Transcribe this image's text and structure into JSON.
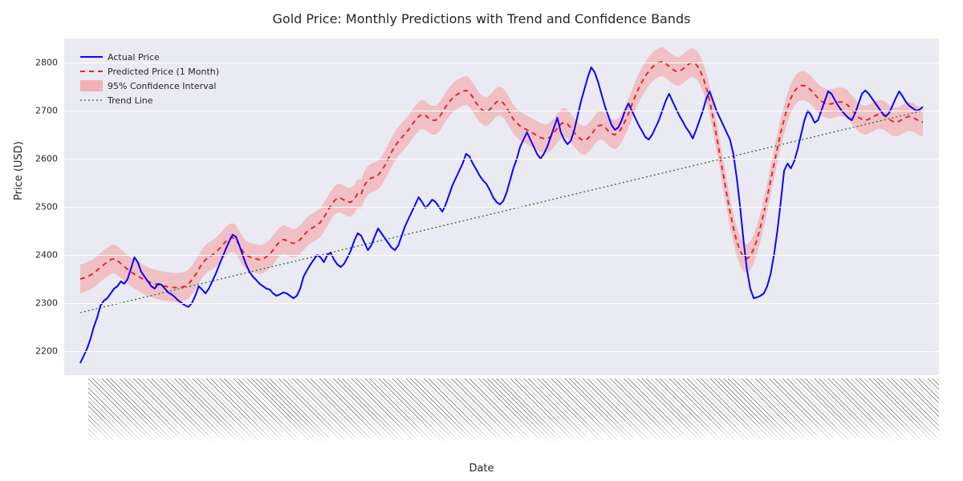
{
  "chart": {
    "type": "line",
    "title": "Gold Price: Monthly Predictions with Trend and Confidence Bands",
    "title_fontsize": 16,
    "title_color": "#262626",
    "xlabel": "Date",
    "ylabel": "Price (USD)",
    "label_fontsize": 13,
    "label_color": "#262626",
    "background_color": "#ffffff",
    "plot_background_color": "#eaeaf2",
    "grid_color": "#ffffff",
    "tick_label_color": "#262626",
    "tick_fontsize": 11,
    "xtick_rotation_deg": 45,
    "xtick_fontsize": 8,
    "xtick_overlap": true,
    "ylim": [
      2150,
      2850
    ],
    "yticks": [
      2200,
      2300,
      2400,
      2500,
      2600,
      2700,
      2800
    ],
    "x_count": 250,
    "legend": {
      "position": "upper-left",
      "fontsize": 11,
      "items": [
        {
          "label": "Actual Price",
          "kind": "line",
          "color": "#0b03ff",
          "linewidth": 2.0,
          "dash": "solid"
        },
        {
          "label": "Predicted Price (1 Month)",
          "kind": "line",
          "color": "#e3272c",
          "linewidth": 2.0,
          "dash": "6,5"
        },
        {
          "label": "95% Confidence Interval",
          "kind": "area",
          "color": "#f2b1b6"
        },
        {
          "label": "Trend Line",
          "kind": "line",
          "color": "#3a7a3a",
          "linewidth": 1.4,
          "dash": "2,3"
        }
      ]
    },
    "series": {
      "trend": {
        "y_start": 2280,
        "y_end": 2700,
        "color": "#3a7a3a",
        "linewidth": 1.4,
        "dash": "2,3"
      },
      "actual": {
        "color": "#0b03ff",
        "linewidth": 2.0,
        "dash": "solid",
        "y": [
          2175,
          2190,
          2205,
          2225,
          2250,
          2270,
          2295,
          2305,
          2310,
          2320,
          2330,
          2335,
          2345,
          2340,
          2350,
          2372,
          2395,
          2385,
          2365,
          2355,
          2345,
          2335,
          2330,
          2340,
          2338,
          2330,
          2322,
          2318,
          2312,
          2305,
          2300,
          2295,
          2292,
          2300,
          2315,
          2335,
          2328,
          2320,
          2330,
          2345,
          2360,
          2378,
          2395,
          2412,
          2428,
          2442,
          2438,
          2420,
          2400,
          2380,
          2365,
          2355,
          2348,
          2340,
          2335,
          2330,
          2328,
          2320,
          2315,
          2318,
          2322,
          2320,
          2315,
          2310,
          2315,
          2330,
          2355,
          2368,
          2380,
          2390,
          2400,
          2395,
          2385,
          2400,
          2405,
          2390,
          2380,
          2375,
          2382,
          2395,
          2410,
          2430,
          2445,
          2440,
          2425,
          2410,
          2420,
          2438,
          2455,
          2445,
          2435,
          2425,
          2415,
          2410,
          2420,
          2440,
          2460,
          2475,
          2490,
          2505,
          2520,
          2510,
          2498,
          2505,
          2515,
          2510,
          2500,
          2490,
          2505,
          2525,
          2545,
          2560,
          2575,
          2590,
          2610,
          2605,
          2590,
          2578,
          2565,
          2555,
          2548,
          2535,
          2520,
          2510,
          2505,
          2512,
          2530,
          2555,
          2580,
          2600,
          2625,
          2640,
          2655,
          2640,
          2625,
          2610,
          2600,
          2610,
          2625,
          2645,
          2665,
          2685,
          2655,
          2640,
          2630,
          2638,
          2660,
          2690,
          2720,
          2745,
          2770,
          2790,
          2780,
          2760,
          2735,
          2710,
          2690,
          2670,
          2660,
          2665,
          2680,
          2700,
          2715,
          2700,
          2685,
          2670,
          2658,
          2645,
          2640,
          2650,
          2665,
          2680,
          2700,
          2720,
          2735,
          2720,
          2705,
          2690,
          2678,
          2665,
          2655,
          2642,
          2660,
          2680,
          2700,
          2725,
          2740,
          2720,
          2700,
          2685,
          2670,
          2655,
          2640,
          2610,
          2560,
          2500,
          2430,
          2370,
          2330,
          2310,
          2312,
          2315,
          2320,
          2335,
          2360,
          2400,
          2450,
          2510,
          2575,
          2590,
          2580,
          2595,
          2620,
          2650,
          2680,
          2700,
          2690,
          2675,
          2680,
          2700,
          2720,
          2740,
          2735,
          2722,
          2710,
          2700,
          2692,
          2685,
          2680,
          2695,
          2715,
          2735,
          2742,
          2735,
          2725,
          2715,
          2705,
          2695,
          2688,
          2695,
          2710,
          2726,
          2740,
          2730,
          2718,
          2710,
          2705,
          2700,
          2702,
          2708
        ]
      },
      "predicted": {
        "color": "#e3272c",
        "linewidth": 2.0,
        "dash": "6,5",
        "band_color": "#f2b1b6",
        "band_half_width": 30,
        "y": [
          2350,
          2352,
          2355,
          2358,
          2362,
          2368,
          2375,
          2380,
          2385,
          2390,
          2392,
          2388,
          2382,
          2376,
          2370,
          2365,
          2360,
          2356,
          2352,
          2348,
          2345,
          2342,
          2340,
          2338,
          2336,
          2335,
          2334,
          2333,
          2332,
          2332,
          2333,
          2335,
          2340,
          2348,
          2358,
          2370,
          2382,
          2390,
          2396,
          2400,
          2405,
          2412,
          2420,
          2428,
          2434,
          2436,
          2432,
          2420,
          2408,
          2400,
          2396,
          2394,
          2392,
          2390,
          2392,
          2396,
          2402,
          2410,
          2420,
          2428,
          2432,
          2430,
          2426,
          2424,
          2426,
          2432,
          2440,
          2448,
          2454,
          2458,
          2462,
          2468,
          2478,
          2490,
          2502,
          2512,
          2518,
          2518,
          2514,
          2510,
          2510,
          2516,
          2528,
          2526,
          2545,
          2555,
          2560,
          2562,
          2566,
          2574,
          2586,
          2600,
          2614,
          2626,
          2636,
          2644,
          2652,
          2660,
          2670,
          2680,
          2688,
          2692,
          2690,
          2684,
          2680,
          2680,
          2686,
          2696,
          2708,
          2718,
          2726,
          2732,
          2736,
          2740,
          2742,
          2738,
          2728,
          2716,
          2706,
          2700,
          2698,
          2702,
          2710,
          2718,
          2720,
          2716,
          2706,
          2694,
          2682,
          2674,
          2668,
          2664,
          2660,
          2656,
          2652,
          2648,
          2644,
          2642,
          2642,
          2646,
          2654,
          2664,
          2672,
          2676,
          2672,
          2664,
          2654,
          2646,
          2640,
          2638,
          2642,
          2650,
          2660,
          2668,
          2670,
          2666,
          2658,
          2652,
          2650,
          2654,
          2664,
          2678,
          2694,
          2712,
          2730,
          2746,
          2760,
          2772,
          2782,
          2790,
          2796,
          2800,
          2802,
          2798,
          2792,
          2786,
          2782,
          2782,
          2786,
          2792,
          2798,
          2800,
          2796,
          2786,
          2770,
          2748,
          2720,
          2686,
          2648,
          2608,
          2568,
          2528,
          2490,
          2456,
          2428,
          2408,
          2396,
          2392,
          2398,
          2412,
          2432,
          2458,
          2488,
          2520,
          2554,
          2588,
          2622,
          2654,
          2682,
          2706,
          2726,
          2740,
          2748,
          2752,
          2752,
          2748,
          2742,
          2734,
          2726,
          2720,
          2716,
          2714,
          2714,
          2716,
          2718,
          2718,
          2716,
          2710,
          2702,
          2694,
          2686,
          2682,
          2680,
          2682,
          2686,
          2690,
          2692,
          2692,
          2688,
          2682,
          2678,
          2676,
          2678,
          2682,
          2686,
          2688,
          2686,
          2682,
          2678,
          2676
        ]
      }
    }
  }
}
